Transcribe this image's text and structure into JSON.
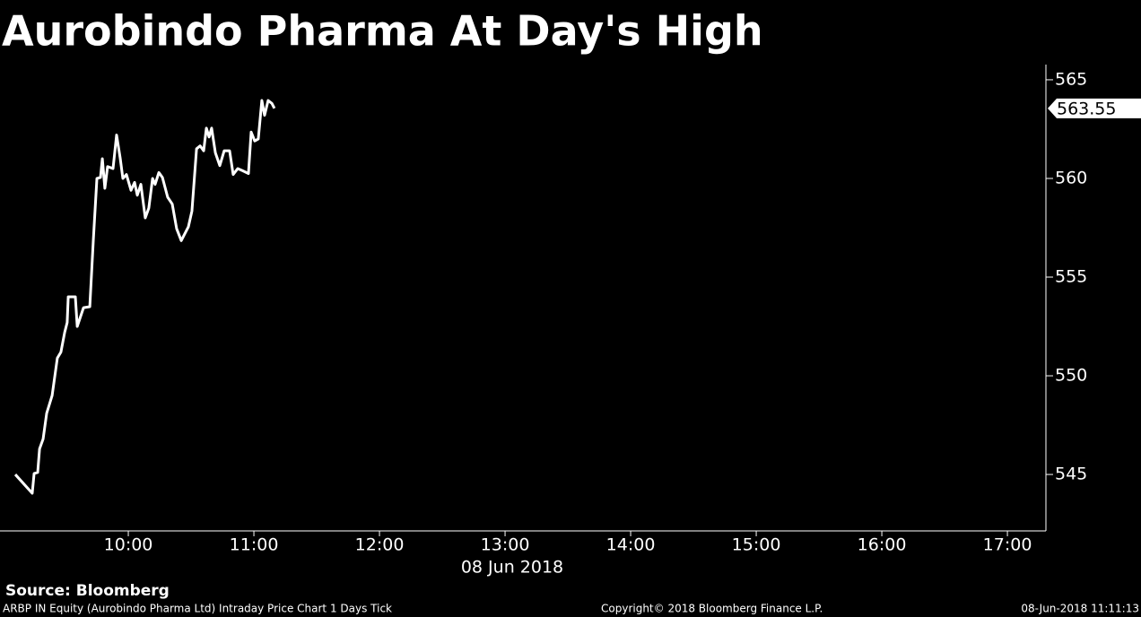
{
  "chart_data": {
    "type": "line",
    "title": "Aurobindo Pharma At Day's High",
    "xlabel": "08 Jun 2018",
    "color": "#ffffff",
    "x": [
      546.0,
      554.1,
      555.0,
      556.7,
      557.6,
      559.3,
      561.0,
      563.6,
      566.1,
      567.8,
      569.6,
      570.8,
      571.3,
      574.7,
      575.6,
      578.6,
      581.6,
      583.3,
      585.0,
      586.7,
      587.6,
      588.8,
      590.1,
      592.7,
      594.4,
      596.1,
      597.4,
      599.1,
      601.3,
      603.0,
      604.3,
      606.0,
      608.1,
      609.8,
      611.6,
      612.8,
      614.6,
      616.3,
      618.8,
      621.0,
      623.1,
      625.3,
      628.7,
      630.4,
      632.6,
      634.3,
      636.0,
      637.3,
      638.6,
      639.8,
      641.6,
      643.7,
      645.8,
      648.4,
      650.1,
      652.3,
      654.4,
      657.4,
      658.7,
      660.4,
      662.1,
      663.8,
      665.1,
      666.8,
      668.6,
      669.8
    ],
    "values": [
      545.0,
      544.05,
      545.05,
      545.1,
      546.3,
      546.8,
      548.1,
      549.0,
      550.9,
      551.2,
      552.2,
      552.7,
      554.0,
      554.0,
      552.5,
      553.45,
      553.5,
      556.9,
      560.0,
      560.05,
      561.0,
      559.5,
      560.6,
      560.5,
      562.2,
      561.05,
      560.0,
      560.2,
      559.4,
      559.8,
      559.15,
      559.7,
      558.0,
      558.5,
      560.0,
      559.7,
      560.3,
      560.05,
      559.05,
      558.7,
      557.45,
      556.85,
      557.55,
      558.35,
      561.5,
      561.65,
      561.4,
      562.55,
      562.1,
      562.55,
      561.3,
      560.65,
      561.4,
      561.4,
      560.2,
      560.5,
      560.4,
      560.25,
      562.35,
      561.9,
      562.0,
      563.95,
      563.2,
      563.95,
      563.8,
      563.55
    ],
    "last_price": 563.55,
    "xlim": [
      538.7,
      1038.4
    ],
    "ylim": [
      542.14,
      565.77
    ],
    "xticks": [
      {
        "value": 600,
        "label": "10:00"
      },
      {
        "value": 660,
        "label": "11:00"
      },
      {
        "value": 720,
        "label": "12:00"
      },
      {
        "value": 780,
        "label": "13:00"
      },
      {
        "value": 840,
        "label": "14:00"
      },
      {
        "value": 900,
        "label": "15:00"
      },
      {
        "value": 960,
        "label": "16:00"
      },
      {
        "value": 1020,
        "label": "17:00"
      }
    ],
    "yticks": [
      545,
      550,
      555,
      560,
      565
    ],
    "source": "Source: Bloomberg",
    "footer_left": "ARBP IN Equity (Aurobindo Pharma Ltd) Intraday Price Chart 1 Days  Tick",
    "footer_center": "Copyright© 2018 Bloomberg Finance L.P.",
    "footer_right": "08-Jun-2018 11:11:13"
  }
}
